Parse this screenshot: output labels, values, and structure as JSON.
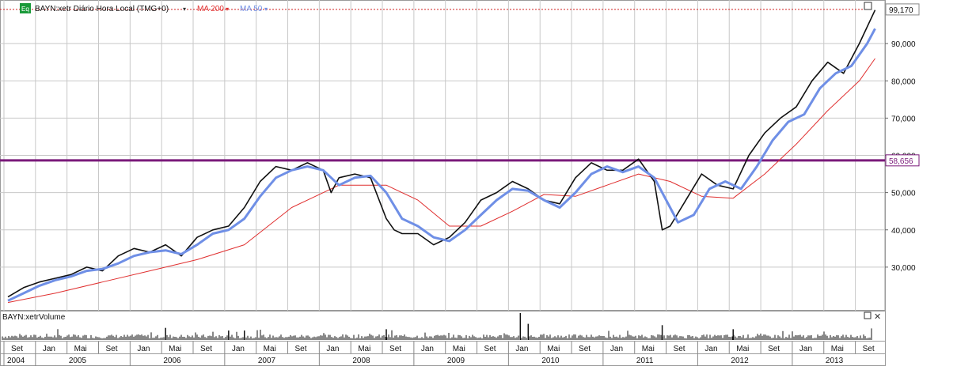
{
  "header": {
    "icon_label": "Eq",
    "symbol": "BAYN:xetr Diário Hora Local (TMG+0)",
    "ma200": "MA 200",
    "ma50": "MA 50",
    "volume_label": "BAYN:xetrVolume"
  },
  "colors": {
    "price": "#111111",
    "ma200": "#e03030",
    "ma50": "#6f8fe6",
    "resistance": "#7a1a7a",
    "last_box": "#d02020",
    "grid": "#c8c8c8",
    "eq_icon": "#1a9a3a"
  },
  "chart_data": {
    "type": "line",
    "x_range": [
      "2004-09",
      "2013-11"
    ],
    "ylim": [
      20000,
      100000
    ],
    "y_ticks": [
      30000,
      40000,
      50000,
      60000,
      70000,
      80000,
      90000
    ],
    "y_tick_labels": [
      "30,000",
      "40,000",
      "50,000",
      "60,000",
      "70,000",
      "80,000",
      "90,000"
    ],
    "last_value": 99.17,
    "last_value_label": "99,170",
    "resistance_value": 58.656,
    "resistance_label": "58,656",
    "month_ticks": [
      {
        "t": "2004-09",
        "label": "Set"
      },
      {
        "t": "2005-01",
        "label": "Jan"
      },
      {
        "t": "2005-05",
        "label": "Mai"
      },
      {
        "t": "2005-09",
        "label": "Set"
      },
      {
        "t": "2006-01",
        "label": "Jan"
      },
      {
        "t": "2006-05",
        "label": "Mai"
      },
      {
        "t": "2006-09",
        "label": "Set"
      },
      {
        "t": "2007-01",
        "label": "Jan"
      },
      {
        "t": "2007-05",
        "label": "Mai"
      },
      {
        "t": "2007-09",
        "label": "Set"
      },
      {
        "t": "2008-01",
        "label": "Jan"
      },
      {
        "t": "2008-05",
        "label": "Mai"
      },
      {
        "t": "2008-09",
        "label": "Set"
      },
      {
        "t": "2009-01",
        "label": "Jan"
      },
      {
        "t": "2009-05",
        "label": "Mai"
      },
      {
        "t": "2009-09",
        "label": "Set"
      },
      {
        "t": "2010-01",
        "label": "Jan"
      },
      {
        "t": "2010-05",
        "label": "Mai"
      },
      {
        "t": "2010-09",
        "label": "Set"
      },
      {
        "t": "2011-01",
        "label": "Jan"
      },
      {
        "t": "2011-05",
        "label": "Mai"
      },
      {
        "t": "2011-09",
        "label": "Set"
      },
      {
        "t": "2012-01",
        "label": "Jan"
      },
      {
        "t": "2012-05",
        "label": "Mai"
      },
      {
        "t": "2012-09",
        "label": "Set"
      },
      {
        "t": "2013-01",
        "label": "Jan"
      },
      {
        "t": "2013-05",
        "label": "Mai"
      },
      {
        "t": "2013-09",
        "label": "Set"
      }
    ],
    "year_labels": [
      {
        "t": "2004-09",
        "label": "2004"
      },
      {
        "t": "2005-01",
        "label": "2005"
      },
      {
        "t": "2006-01",
        "label": "2006"
      },
      {
        "t": "2007-01",
        "label": "2007"
      },
      {
        "t": "2008-01",
        "label": "2008"
      },
      {
        "t": "2009-01",
        "label": "2009"
      },
      {
        "t": "2010-01",
        "label": "2010"
      },
      {
        "t": "2011-01",
        "label": "2011"
      },
      {
        "t": "2012-01",
        "label": "2012"
      },
      {
        "t": "2013-01",
        "label": "2013"
      }
    ],
    "series": [
      {
        "name": "BAYN:xetr",
        "x": [
          "2004-09",
          "2004-11",
          "2005-01",
          "2005-03",
          "2005-05",
          "2005-07",
          "2005-09",
          "2005-11",
          "2006-01",
          "2006-03",
          "2006-05",
          "2006-07",
          "2006-09",
          "2006-11",
          "2007-01",
          "2007-03",
          "2007-05",
          "2007-07",
          "2007-09",
          "2007-11",
          "2008-01",
          "2008-02",
          "2008-03",
          "2008-05",
          "2008-07",
          "2008-09",
          "2008-10",
          "2008-11",
          "2009-01",
          "2009-03",
          "2009-05",
          "2009-07",
          "2009-09",
          "2009-11",
          "2010-01",
          "2010-03",
          "2010-05",
          "2010-07",
          "2010-09",
          "2010-11",
          "2011-01",
          "2011-03",
          "2011-05",
          "2011-07",
          "2011-08",
          "2011-09",
          "2011-11",
          "2012-01",
          "2012-03",
          "2012-05",
          "2012-07",
          "2012-09",
          "2012-11",
          "2013-01",
          "2013-03",
          "2013-05",
          "2013-07",
          "2013-09",
          "2013-11"
        ],
        "values": [
          22,
          24.5,
          26,
          27,
          28,
          30,
          29,
          33,
          35,
          34,
          36,
          33,
          38,
          40,
          41,
          46,
          53,
          57,
          56,
          58,
          56,
          50,
          54,
          55,
          54,
          43,
          40,
          39,
          39,
          36,
          38,
          42,
          48,
          50,
          53,
          51,
          48,
          47,
          54,
          58,
          56,
          56,
          59,
          53,
          40,
          41,
          48,
          55,
          52,
          51,
          60,
          66,
          70,
          73,
          80,
          85,
          82,
          90,
          99
        ]
      },
      {
        "name": "MA 50",
        "x": [
          "2004-09",
          "2004-11",
          "2005-01",
          "2005-03",
          "2005-05",
          "2005-07",
          "2005-09",
          "2005-11",
          "2006-01",
          "2006-03",
          "2006-05",
          "2006-07",
          "2006-09",
          "2006-11",
          "2007-01",
          "2007-03",
          "2007-05",
          "2007-07",
          "2007-09",
          "2007-11",
          "2008-01",
          "2008-03",
          "2008-05",
          "2008-07",
          "2008-09",
          "2008-11",
          "2009-01",
          "2009-03",
          "2009-05",
          "2009-07",
          "2009-09",
          "2009-11",
          "2010-01",
          "2010-03",
          "2010-05",
          "2010-07",
          "2010-09",
          "2010-11",
          "2011-01",
          "2011-03",
          "2011-05",
          "2011-07",
          "2011-09",
          "2011-10",
          "2011-12",
          "2012-02",
          "2012-04",
          "2012-06",
          "2012-08",
          "2012-10",
          "2012-12",
          "2013-02",
          "2013-04",
          "2013-06",
          "2013-08",
          "2013-10",
          "2013-11"
        ],
        "values": [
          21,
          23,
          25,
          26.5,
          27.5,
          29,
          29.5,
          31,
          33,
          34,
          34.5,
          33.5,
          36,
          39,
          40,
          43,
          49,
          54,
          56,
          57,
          56,
          52,
          54,
          54.5,
          50,
          43,
          41,
          38,
          37,
          40,
          44,
          48,
          51,
          50.5,
          48,
          46,
          50,
          55,
          57,
          55.5,
          57,
          54,
          46,
          42,
          44,
          51,
          53,
          51,
          57,
          64,
          69,
          71,
          78,
          82,
          84,
          90,
          94
        ]
      },
      {
        "name": "MA 200",
        "x": [
          "2004-09",
          "2005-03",
          "2005-09",
          "2006-03",
          "2006-09",
          "2007-03",
          "2007-09",
          "2008-03",
          "2008-09",
          "2009-01",
          "2009-05",
          "2009-09",
          "2010-01",
          "2010-05",
          "2010-09",
          "2011-01",
          "2011-05",
          "2011-09",
          "2012-01",
          "2012-05",
          "2012-09",
          "2013-01",
          "2013-05",
          "2013-09",
          "2013-11"
        ],
        "values": [
          20.5,
          23,
          26,
          29,
          32,
          36,
          46,
          52,
          52,
          48,
          41,
          41,
          45,
          49.5,
          49,
          52,
          55,
          53,
          49,
          48.5,
          55,
          63,
          72,
          80,
          86
        ]
      }
    ],
    "volume": {
      "name": "BAYN:xetrVolume",
      "spikes": [
        {
          "t": "2007-01",
          "v": 0.35
        },
        {
          "t": "2007-03",
          "v": 0.35
        },
        {
          "t": "2006-05",
          "v": 0.45
        },
        {
          "t": "2008-09",
          "v": 0.4
        },
        {
          "t": "2010-02",
          "v": 1.0
        },
        {
          "t": "2010-03",
          "v": 0.6
        },
        {
          "t": "2011-08",
          "v": 0.55
        },
        {
          "t": "2012-05",
          "v": 0.4
        }
      ]
    }
  }
}
